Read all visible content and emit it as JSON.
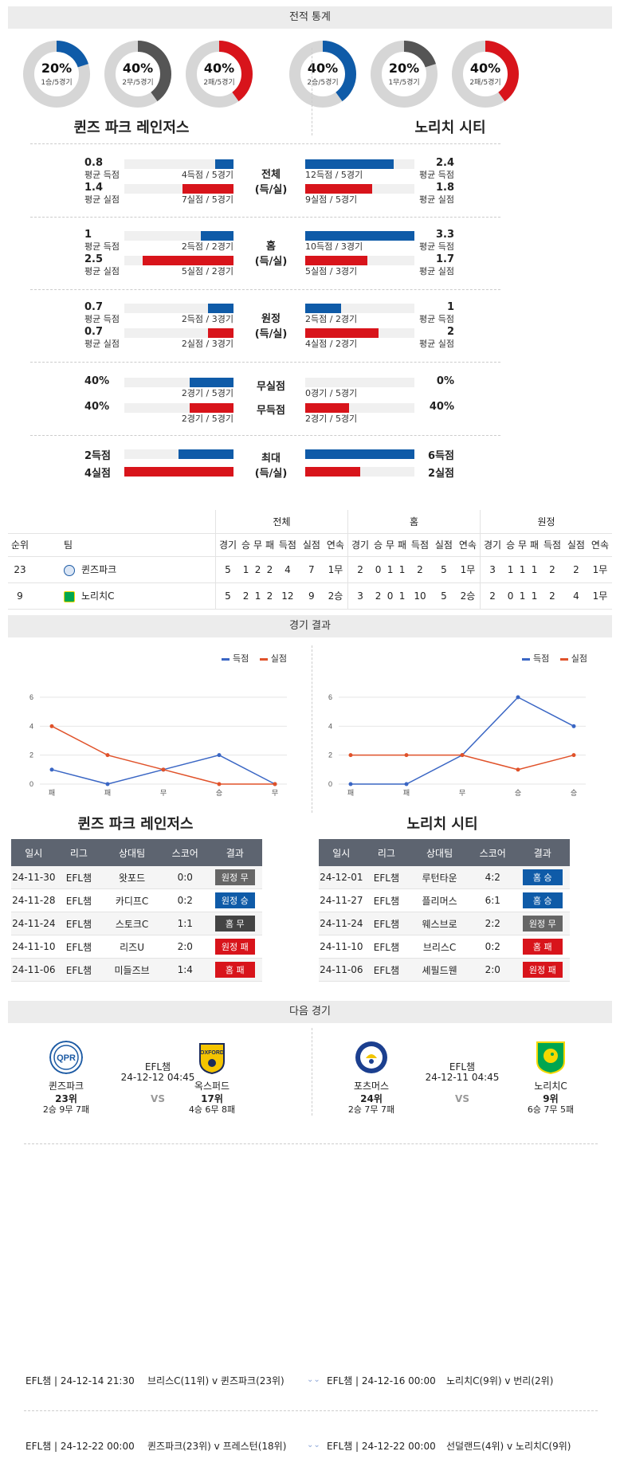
{
  "sections": {
    "record": "전적 통계",
    "results": "경기 결과",
    "next": "다음 경기"
  },
  "donuts": {
    "left": [
      {
        "pct": "20%",
        "sub": "1승/5경기",
        "value": 20,
        "color": "#0f5ba8"
      },
      {
        "pct": "40%",
        "sub": "2무/5경기",
        "value": 40,
        "color": "#555555"
      },
      {
        "pct": "40%",
        "sub": "2패/5경기",
        "value": 40,
        "color": "#d8141b"
      }
    ],
    "right": [
      {
        "pct": "40%",
        "sub": "2승/5경기",
        "value": 40,
        "color": "#0f5ba8"
      },
      {
        "pct": "20%",
        "sub": "1무/5경기",
        "value": 20,
        "color": "#555555"
      },
      {
        "pct": "40%",
        "sub": "2패/5경기",
        "value": 40,
        "color": "#d8141b"
      }
    ]
  },
  "teams": {
    "left": "퀸즈 파크 레인저스",
    "right": "노리치 시티"
  },
  "stats": {
    "total": {
      "center": "전체",
      "center2": "(득/실)",
      "l1": {
        "val": "0.8",
        "lbl": "평균 득점",
        "cnt": "4득점 / 5경기",
        "frac": 0.17
      },
      "l2": {
        "val": "1.4",
        "lbl": "평균 실점",
        "cnt": "7실점 / 5경기",
        "frac": 0.47
      },
      "r1": {
        "val": "2.4",
        "lbl": "평균 득점",
        "cnt": "12득점 / 5경기",
        "frac": 0.81
      },
      "r2": {
        "val": "1.8",
        "lbl": "평균 실점",
        "cnt": "9실점 / 5경기",
        "frac": 0.61
      }
    },
    "home": {
      "center": "홈",
      "center2": "(득/실)",
      "l1": {
        "val": "1",
        "lbl": "평균 득점",
        "cnt": "2득점 / 2경기",
        "frac": 0.3
      },
      "l2": {
        "val": "2.5",
        "lbl": "평균 실점",
        "cnt": "5실점 / 2경기",
        "frac": 0.83
      },
      "r1": {
        "val": "3.3",
        "lbl": "평균 득점",
        "cnt": "10득점 / 3경기",
        "frac": 1.0
      },
      "r2": {
        "val": "1.7",
        "lbl": "평균 실점",
        "cnt": "5실점 / 3경기",
        "frac": 0.57
      }
    },
    "away": {
      "center": "원정",
      "center2": "(득/실)",
      "l1": {
        "val": "0.7",
        "lbl": "평균 득점",
        "cnt": "2득점 / 3경기",
        "frac": 0.23
      },
      "l2": {
        "val": "0.7",
        "lbl": "평균 실점",
        "cnt": "2실점 / 3경기",
        "frac": 0.23
      },
      "r1": {
        "val": "1",
        "lbl": "평균 득점",
        "cnt": "2득점 / 2경기",
        "frac": 0.33
      },
      "r2": {
        "val": "2",
        "lbl": "평균 실점",
        "cnt": "4실점 / 2경기",
        "frac": 0.67
      }
    },
    "clean": {
      "center_a": "무실점",
      "center_b": "무득점",
      "l1": {
        "val": "40%",
        "cnt": "2경기 / 5경기",
        "frac": 0.4
      },
      "l2": {
        "val": "40%",
        "cnt": "2경기 / 5경기",
        "frac": 0.4
      },
      "r1": {
        "val": "0%",
        "cnt": "0경기 / 5경기",
        "frac": 0.0
      },
      "r2": {
        "val": "40%",
        "cnt": "2경기 / 5경기",
        "frac": 0.4
      }
    },
    "max": {
      "center": "최대",
      "center2": "(득/실)",
      "l1": {
        "val": "2득점",
        "frac": 0.5
      },
      "l2": {
        "val": "4실점",
        "frac": 1.0
      },
      "r1": {
        "val": "6득점",
        "frac": 1.0
      },
      "r2": {
        "val": "2실점",
        "frac": 0.5
      }
    }
  },
  "standings": {
    "groups": [
      "전체",
      "홈",
      "원정"
    ],
    "cols": [
      "순위",
      "팀",
      "경기",
      "승",
      "무",
      "패",
      "득점",
      "실점",
      "연속",
      "경기",
      "승",
      "무",
      "패",
      "득점",
      "실점",
      "연속",
      "경기",
      "승",
      "무",
      "패",
      "득점",
      "실점",
      "연속"
    ],
    "rows": [
      [
        "23",
        "퀸즈파크",
        "5",
        "1",
        "2",
        "2",
        "4",
        "7",
        "1무",
        "2",
        "0",
        "1",
        "1",
        "2",
        "5",
        "1무",
        "3",
        "1",
        "1",
        "1",
        "2",
        "2",
        "1무"
      ],
      [
        "9",
        "노리치C",
        "5",
        "2",
        "1",
        "2",
        "12",
        "9",
        "2승",
        "3",
        "2",
        "0",
        "1",
        "10",
        "5",
        "2승",
        "2",
        "0",
        "1",
        "1",
        "2",
        "4",
        "1무"
      ]
    ]
  },
  "legend": {
    "scored": "득점",
    "conceded": "실점"
  },
  "chart_data": [
    {
      "type": "line",
      "title": "",
      "x": [
        "패",
        "패",
        "무",
        "승",
        "무"
      ],
      "ylim": [
        0,
        6
      ],
      "yticks": [
        0,
        2,
        4,
        6
      ],
      "series": [
        {
          "name": "득점",
          "color": "#3a66c4",
          "values": [
            1,
            0,
            1,
            2,
            0
          ]
        },
        {
          "name": "실점",
          "color": "#e0522a",
          "values": [
            4,
            2,
            1,
            0,
            0
          ]
        }
      ]
    },
    {
      "type": "line",
      "title": "",
      "x": [
        "패",
        "패",
        "무",
        "승",
        "승"
      ],
      "ylim": [
        0,
        6
      ],
      "yticks": [
        0,
        2,
        4,
        6
      ],
      "series": [
        {
          "name": "득점",
          "color": "#3a66c4",
          "values": [
            0,
            0,
            2,
            6,
            4
          ]
        },
        {
          "name": "실점",
          "color": "#e0522a",
          "values": [
            2,
            2,
            2,
            1,
            2
          ]
        }
      ]
    }
  ],
  "results": {
    "headers": [
      "일시",
      "리그",
      "상대팀",
      "스코어",
      "결과"
    ],
    "left": [
      [
        "24-11-30",
        "EFL챔",
        "왓포드",
        "0:0",
        "원정 무",
        "bg-away-draw"
      ],
      [
        "24-11-28",
        "EFL챔",
        "카디프C",
        "0:2",
        "원정 승",
        "bg-win"
      ],
      [
        "24-11-24",
        "EFL챔",
        "스토크C",
        "1:1",
        "홈 무",
        "bg-home-draw"
      ],
      [
        "24-11-10",
        "EFL챔",
        "리즈U",
        "2:0",
        "원정 패",
        "bg-loss"
      ],
      [
        "24-11-06",
        "EFL챔",
        "미들즈브",
        "1:4",
        "홈 패",
        "bg-loss"
      ]
    ],
    "right": [
      [
        "24-12-01",
        "EFL챔",
        "루턴타운",
        "4:2",
        "홈 승",
        "bg-win"
      ],
      [
        "24-11-27",
        "EFL챔",
        "플리머스",
        "6:1",
        "홈 승",
        "bg-win"
      ],
      [
        "24-11-24",
        "EFL챔",
        "웨스브로",
        "2:2",
        "원정 무",
        "bg-away-draw"
      ],
      [
        "24-11-10",
        "EFL챔",
        "브리스C",
        "0:2",
        "홈 패",
        "bg-loss"
      ],
      [
        "24-11-06",
        "EFL챔",
        "셰필드웬",
        "2:0",
        "원정 패",
        "bg-loss"
      ]
    ]
  },
  "next": {
    "left": {
      "league": "EFL챔",
      "date": "24-12-12 04:45",
      "vs": "VS",
      "home": {
        "name": "퀸즈파크",
        "rank": "23위",
        "rec": "2승 9무 7패"
      },
      "away": {
        "name": "옥스퍼드",
        "rank": "17위",
        "rec": "4승 6무 8패"
      }
    },
    "right": {
      "league": "EFL챔",
      "date": "24-12-11 04:45",
      "vs": "VS",
      "home": {
        "name": "포츠머스",
        "rank": "24위",
        "rec": "2승 7무 7패"
      },
      "away": {
        "name": "노리치C",
        "rank": "9위",
        "rec": "6승 7무 5패"
      }
    }
  },
  "upcoming": [
    {
      "l_info": "EFL챔 | 24-12-14 21:30",
      "l_teams": "브리스C(11위) v 퀸즈파크(23위)",
      "r_info": "EFL챔 | 24-12-16 00:00",
      "r_teams": "노리치C(9위) v 번리(2위)"
    },
    {
      "l_info": "EFL챔 | 24-12-22 00:00",
      "l_teams": "퀸즈파크(23위) v 프레스턴(18위)",
      "r_info": "EFL챔 | 24-12-22 00:00",
      "r_teams": "선덜랜드(4위) v 노리치C(9위)"
    }
  ]
}
